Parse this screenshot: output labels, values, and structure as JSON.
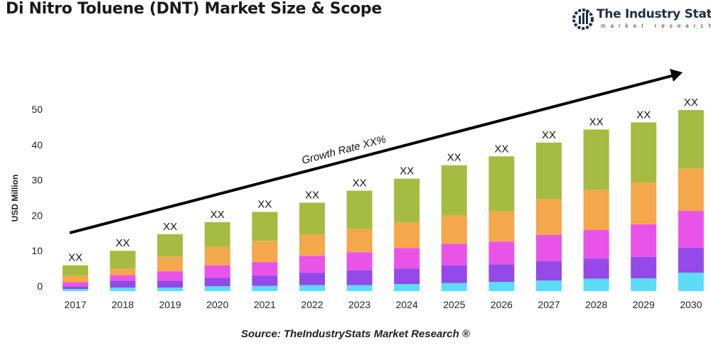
{
  "title": "Di Nitro Toluene (DNT) Market Size & Scope",
  "logo": {
    "name": "The Industry Stats",
    "tagline": "market research"
  },
  "source": "Source: TheIndustryStats Market Research ®",
  "chart_data": {
    "type": "bar",
    "stacked": true,
    "title": "Di Nitro Toluene (DNT) Market Size & Scope",
    "xlabel": "",
    "ylabel": "USD Million",
    "ylim": [
      0,
      50
    ],
    "yticks": [
      0,
      10,
      20,
      30,
      40,
      50
    ],
    "grid": false,
    "legend": "none",
    "categories": [
      "2017",
      "2018",
      "2019",
      "2020",
      "2021",
      "2022",
      "2023",
      "2024",
      "2025",
      "2026",
      "2027",
      "2028",
      "2029",
      "2030"
    ],
    "bar_labels": [
      "XX",
      "XX",
      "XX",
      "XX",
      "XX",
      "XX",
      "XX",
      "XX",
      "XX",
      "XX",
      "XX",
      "XX",
      "XX",
      "XX"
    ],
    "annotation": "Growth Rate XX%",
    "series": [
      {
        "color": "#5ddcf8",
        "values": [
          0.6,
          1.0,
          1.0,
          1.4,
          1.5,
          1.7,
          1.7,
          2.0,
          2.3,
          2.6,
          3.0,
          3.5,
          3.6,
          5.2
        ]
      },
      {
        "color": "#9449e8",
        "values": [
          0.7,
          1.9,
          1.9,
          2.4,
          2.9,
          3.5,
          4.2,
          4.4,
          5.0,
          5.0,
          5.5,
          5.7,
          6.1,
          7.1
        ]
      },
      {
        "color": "#ea53e8",
        "values": [
          1.2,
          1.6,
          2.7,
          3.5,
          3.8,
          4.8,
          5.1,
          5.8,
          6.1,
          6.4,
          7.4,
          8.1,
          9.2,
          10.4
        ]
      },
      {
        "color": "#f4a74b",
        "values": [
          1.9,
          1.9,
          4.1,
          5.2,
          6.0,
          6.0,
          6.6,
          7.2,
          8.0,
          8.6,
          10.2,
          11.4,
          11.8,
          12.0
        ]
      },
      {
        "color": "#a5bb41",
        "values": [
          2.9,
          5.0,
          6.4,
          7.0,
          8.2,
          9.0,
          10.8,
          12.4,
          14.2,
          15.5,
          15.9,
          17.0,
          17.0,
          16.5
        ]
      }
    ]
  }
}
